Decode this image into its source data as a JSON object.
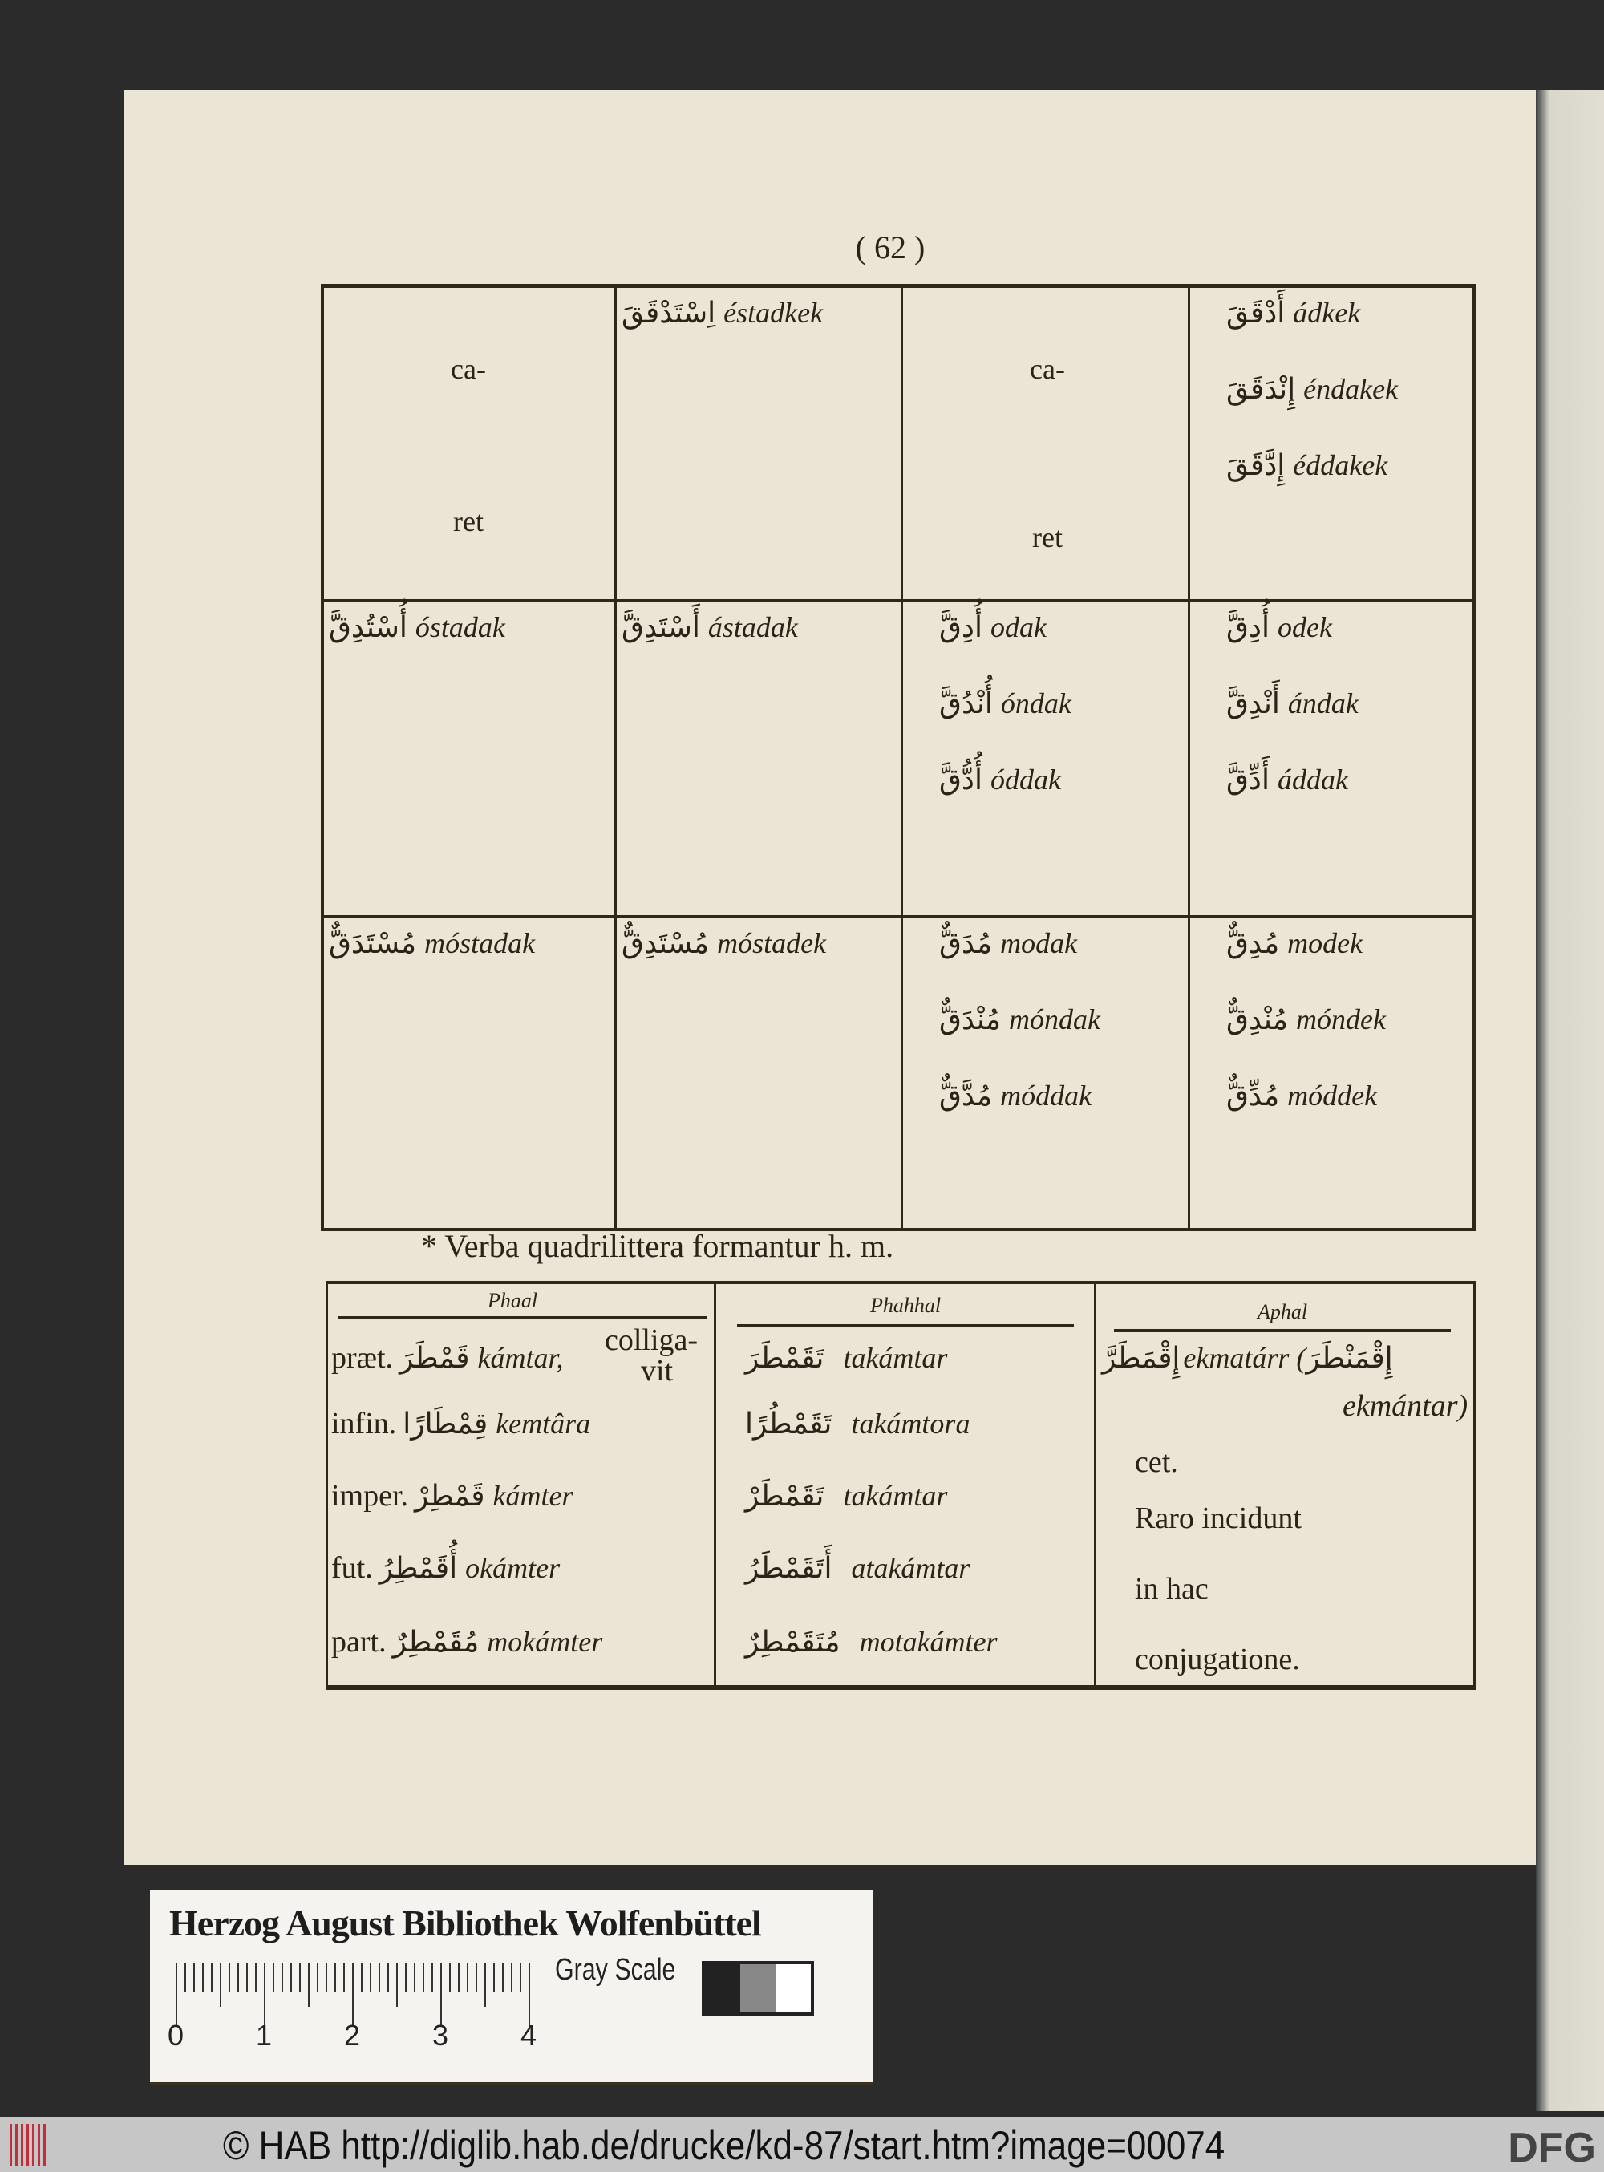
{
  "page_number": "( 62 )",
  "upper_table": [
    [
      {
        "top": "ca-",
        "bottom": "ret"
      },
      {
        "lines": [
          {
            "ar": "اِسْتَدْقَقَ",
            "tr": "éstadkek"
          }
        ]
      },
      {
        "top": "ca-",
        "bottom": "ret"
      },
      {
        "lines": [
          {
            "ar": "أَدْقَقَ",
            "tr": "ádkek"
          },
          {
            "ar": "إِنْدَقَقَ",
            "tr": "éndakek"
          },
          {
            "ar": "إِدَّقَقَ",
            "tr": "éddakek"
          }
        ]
      }
    ],
    [
      {
        "lines": [
          {
            "ar": "أُسْتُدِقَّ",
            "tr": "óstadak"
          }
        ]
      },
      {
        "lines": [
          {
            "ar": "أَسْتَدِقَّ",
            "tr": "ástadak"
          }
        ]
      },
      {
        "lines": [
          {
            "ar": "أُدِقَّ",
            "tr": "odak"
          },
          {
            "ar": "أُنْدُقَّ",
            "tr": "óndak"
          },
          {
            "ar": "أُدُّقَّ",
            "tr": "óddak"
          }
        ]
      },
      {
        "lines": [
          {
            "ar": "أُدِقَّ",
            "tr": "odek"
          },
          {
            "ar": "أَنْدِقَّ",
            "tr": "ándak"
          },
          {
            "ar": "أَدِّقَّ",
            "tr": "áddak"
          }
        ]
      }
    ],
    [
      {
        "lines": [
          {
            "ar": "مُسْتَدَقٌّ",
            "tr": "móstadak"
          }
        ]
      },
      {
        "lines": [
          {
            "ar": "مُسْتَدِقٌّ",
            "tr": "móstadek"
          }
        ]
      },
      {
        "lines": [
          {
            "ar": "مُدَقٌّ",
            "tr": "modak"
          },
          {
            "ar": "مُنْدَقٌّ",
            "tr": "móndak"
          },
          {
            "ar": "مُدَّقٌّ",
            "tr": "móddak"
          }
        ]
      },
      {
        "lines": [
          {
            "ar": "مُدِقٌّ",
            "tr": "modek"
          },
          {
            "ar": "مُنْدِقٌّ",
            "tr": "móndek"
          },
          {
            "ar": "مُدِّقٌّ",
            "tr": "móddek"
          }
        ]
      }
    ]
  ],
  "footnote": "* Verba quadrilittera formantur h. m.",
  "lower_table": {
    "headers": [
      "Phaal",
      "Phahhal",
      "Aphal"
    ],
    "labels": [
      "præt.",
      "infin.",
      "imper.",
      "fut.",
      "part."
    ],
    "phaal": [
      {
        "ar": "قَمْطَرَ",
        "tr": "kámtar,",
        "note1": "colliga-",
        "note2": "vit"
      },
      {
        "ar": "قِمْطَارًا",
        "tr": "kemtâra"
      },
      {
        "ar": "قَمْطِرْ",
        "tr": "kámter"
      },
      {
        "ar": "أُقَمْطِرُ",
        "tr": "okámter"
      },
      {
        "ar": "مُقَمْطِرٌ",
        "tr": "mokámter"
      }
    ],
    "phahhal": [
      {
        "ar": "تَقَمْطَرَ",
        "tr": "takámtar"
      },
      {
        "ar": "تَقَمْطُرًا",
        "tr": "takámtora"
      },
      {
        "ar": "تَقَمْطَرْ",
        "tr": "takámtar"
      },
      {
        "ar": "أَتَقَمْطَرُ",
        "tr": "atakámtar"
      },
      {
        "ar": "مُتَقَمْطِرٌ",
        "tr": "motakámter"
      }
    ],
    "aphal": {
      "ar1": "إِقْمَطَرَّ",
      "tr1": "ekmatárr (",
      "ar2": "إِقْمَنْطَرَ",
      "tr2": "ekmántar)",
      "lines": [
        "cet.",
        "Raro incidunt",
        "in hac",
        "conjugatione."
      ]
    }
  },
  "card": {
    "title": "Herzog August Bibliothek Wolfenbüttel",
    "ruler_numbers": [
      "0",
      "1",
      "2",
      "3",
      "4"
    ],
    "gray_scale": "Gray Scale"
  },
  "footer": {
    "text": "© HAB http://diglib.hab.de/drucke/kd-87/start.htm?image=00074",
    "dfg": "DFG"
  },
  "colors": {
    "paper": "#ebe5d6",
    "background": "#2a2b2a",
    "ink": "#2e2818",
    "footer": "#c6c6c6",
    "hab_logo": "#c0303a"
  }
}
